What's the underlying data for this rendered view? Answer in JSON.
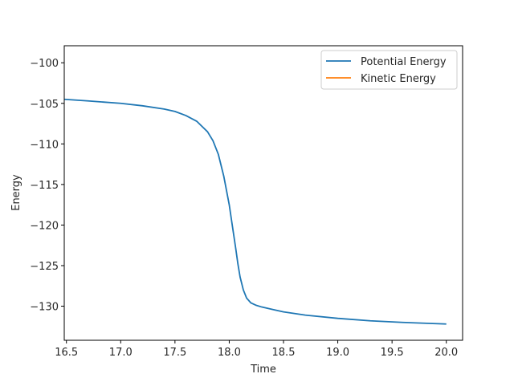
{
  "chart_data": {
    "type": "line",
    "title": "",
    "xlabel": "Time",
    "ylabel": "Energy",
    "xlim": [
      16.48,
      20.15
    ],
    "ylim": [
      -134.2,
      -97.9
    ],
    "xticks": [
      17.0,
      17.5,
      18.0,
      18.5,
      19.0,
      19.5,
      20.0
    ],
    "xtick_labels": [
      "17.0",
      "17.5",
      "18.0",
      "18.5",
      "19.0",
      "19.5",
      "20.0"
    ],
    "xtick_first_label": "16.5",
    "xtick_first_value": 16.5,
    "yticks": [
      -100,
      -105,
      -110,
      -115,
      -120,
      -125,
      -130
    ],
    "ytick_labels": [
      "−100",
      "−105",
      "−110",
      "−115",
      "−120",
      "−125",
      "−130"
    ],
    "grid": false,
    "legend_position": "upper-right",
    "series": [
      {
        "name": "Potential Energy",
        "color": "#1f77b4",
        "x": [
          16.48,
          16.7,
          17.0,
          17.2,
          17.4,
          17.5,
          17.6,
          17.7,
          17.8,
          17.85,
          17.9,
          17.95,
          18.0,
          18.03,
          18.06,
          18.08,
          18.1,
          18.13,
          18.16,
          18.2,
          18.25,
          18.3,
          18.4,
          18.5,
          18.7,
          19.0,
          19.3,
          19.6,
          20.0
        ],
        "y": [
          -104.5,
          -104.7,
          -105.0,
          -105.3,
          -105.7,
          -106.0,
          -106.5,
          -107.2,
          -108.5,
          -109.6,
          -111.3,
          -114.0,
          -117.5,
          -120.2,
          -122.9,
          -124.8,
          -126.4,
          -128.0,
          -129.0,
          -129.6,
          -129.9,
          -130.1,
          -130.4,
          -130.7,
          -131.1,
          -131.5,
          -131.8,
          -132.0,
          -132.2
        ]
      },
      {
        "name": "Kinetic Energy",
        "color": "#ff7f0e",
        "x": [],
        "y": []
      }
    ]
  }
}
